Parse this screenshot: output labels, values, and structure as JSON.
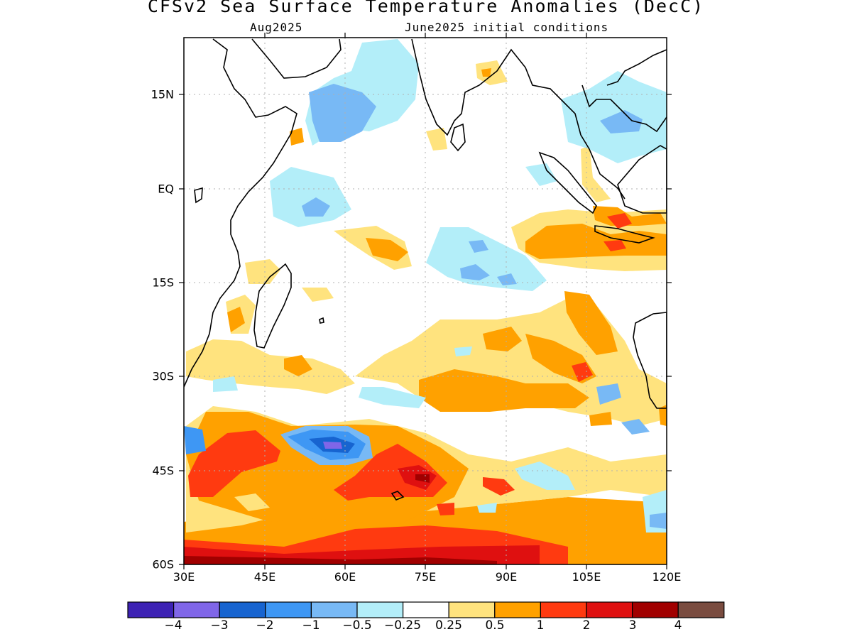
{
  "title": "CFSv2 Sea Surface Temperature Anomalies (DecC)",
  "subtitle_left": "Aug2025",
  "subtitle_right": "June2025 initial conditions",
  "lat_labels": [
    "15N",
    "EQ",
    "15S",
    "30S",
    "45S",
    "60S"
  ],
  "lon_labels": [
    "30E",
    "45E",
    "60E",
    "75E",
    "90E",
    "105E",
    "120E"
  ],
  "map_extent": {
    "lon": [
      30,
      120
    ],
    "lat": [
      -60,
      24
    ]
  },
  "colorbar": {
    "colors": [
      "#3d22b4",
      "#8066e8",
      "#1764d0",
      "#3e97f4",
      "#78b9f5",
      "#b3eef9",
      "#ffffff",
      "#ffe37e",
      "#ffa100",
      "#ff3a10",
      "#df1010",
      "#a10000",
      "#7a4c40"
    ],
    "labels": [
      "−4",
      "−3",
      "−2",
      "−1",
      "−0.5",
      "−0.25",
      "0.25",
      "0.5",
      "1",
      "2",
      "3",
      "4"
    ]
  },
  "palette": {
    "light_blue": "#b3eef9",
    "blue": "#78b9f5",
    "mid_blue": "#3e97f4",
    "dark_blue": "#1764d0",
    "purple": "#8066e8",
    "yellow": "#ffe37e",
    "orange": "#ffa100",
    "red_orange": "#ff3a10",
    "red": "#df1010",
    "dark_red": "#a10000"
  }
}
